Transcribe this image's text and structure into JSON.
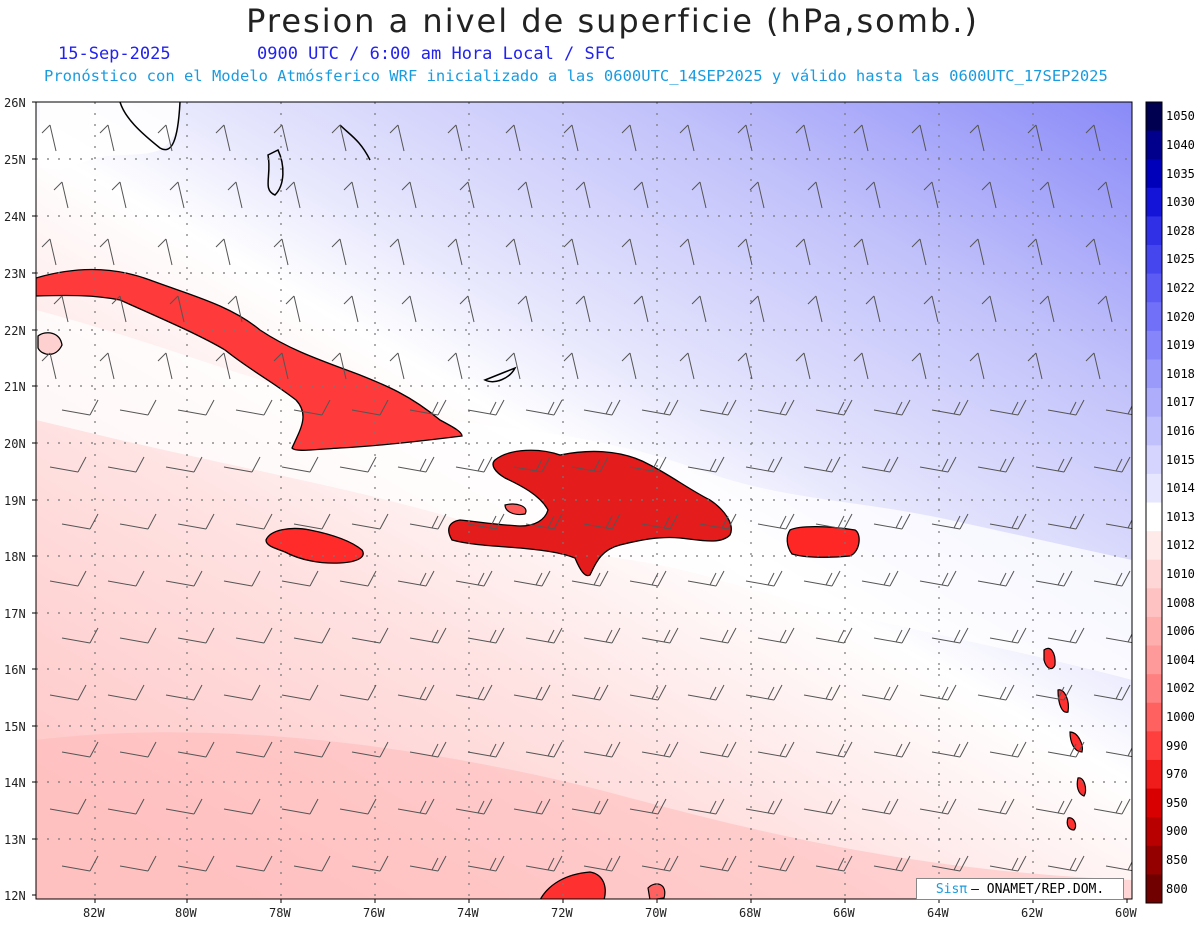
{
  "title": "Presion a nivel de superficie (hPa,somb.)",
  "date": "15-Sep-2025",
  "valid_time": "0900 UTC / 6:00 am Hora Local / SFC",
  "forecast_note": "Pronóstico con el Modelo Atmósferico WRF inicializado a las 0600UTC_14SEP2025 y válido hasta las  0600UTC_17SEP2025",
  "lat_labels": [
    "26N",
    "25N",
    "24N",
    "23N",
    "22N",
    "21N",
    "20N",
    "19N",
    "18N",
    "17N",
    "16N",
    "15N",
    "14N",
    "13N",
    "12N"
  ],
  "lon_labels": [
    "82W",
    "80W",
    "78W",
    "76W",
    "74W",
    "72W",
    "70W",
    "68W",
    "66W",
    "64W",
    "62W",
    "60W"
  ],
  "colorbar": {
    "levels": [
      "1050",
      "1040",
      "1035",
      "1030",
      "1028",
      "1025",
      "1022",
      "1020",
      "1019",
      "1018",
      "1017",
      "1016",
      "1015",
      "1014",
      "1013",
      "1012",
      "1010",
      "1008",
      "1006",
      "1004",
      "1002",
      "1000",
      "990",
      "970",
      "950",
      "900",
      "850",
      "800"
    ],
    "colors": [
      "#000050",
      "#00008c",
      "#0000bb",
      "#1414d8",
      "#3030e6",
      "#4646ef",
      "#5c5cf5",
      "#7070f8",
      "#8686fa",
      "#9a9afb",
      "#adadfc",
      "#c0c0fd",
      "#d4d4fe",
      "#e6e6ff",
      "#ffffff",
      "#ffeaea",
      "#ffd6d6",
      "#ffc2c2",
      "#ffaeae",
      "#ff9a9a",
      "#ff8080",
      "#ff6060",
      "#ff3e3e",
      "#f01c1c",
      "#d80000",
      "#b80000",
      "#940000",
      "#700000"
    ]
  },
  "credit": {
    "brand": "Sisπ",
    "text": "– ONAMET/REP.DOM."
  }
}
